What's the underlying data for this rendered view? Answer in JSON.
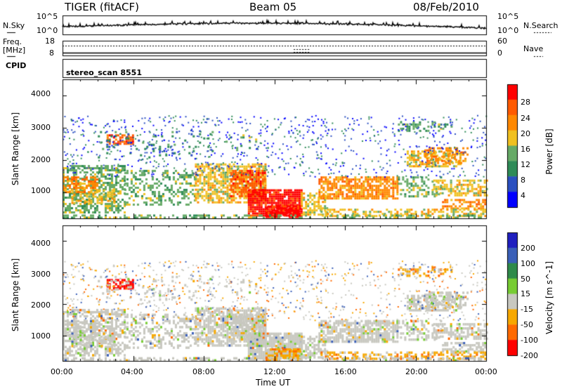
{
  "header": {
    "radar": "TIGER (fitACF)",
    "beam": "Beam 05",
    "date": "08/Feb/2010"
  },
  "left_labels": {
    "nsky": "N.Sky",
    "freq_line1": "Freq.",
    "freq_line2": "[MHz]",
    "cpid": "CPID"
  },
  "right_labels": {
    "nsearch": "N.Search",
    "nave": "Nave"
  },
  "cpid_name": "stereo_scan 8551",
  "noise_panel": {
    "left_ticks": [
      "10^5",
      "10^0"
    ],
    "right_ticks": [
      "10^5",
      "10^0"
    ]
  },
  "freq_panel": {
    "left_ticks": [
      "18",
      "8"
    ],
    "right_ticks": [
      "60",
      "0"
    ]
  },
  "colors": {
    "power": [
      "#0000ff",
      "#2a4fc0",
      "#2e8b57",
      "#66aa66",
      "#f0c020",
      "#ff8800",
      "#ff5a00",
      "#ff0000"
    ],
    "velocity": [
      "#1f1fbf",
      "#3a5fb8",
      "#2f8a4a",
      "#77cc33",
      "#c8c8c0",
      "#f7a800",
      "#ff6a00",
      "#ff0000"
    ]
  },
  "chart_data": [
    {
      "type": "heatmap",
      "ylabel": "Slant Range [km]",
      "xlabel": "",
      "x_range_hours": [
        0,
        24
      ],
      "ylim": [
        200,
        4500
      ],
      "yticks": [
        "1000",
        "2000",
        "3000",
        "4000"
      ],
      "colorbar_label": "Power [dB]",
      "colorbar_ticks": [
        "4",
        "8",
        "12",
        "16",
        "20",
        "24",
        "28"
      ],
      "colorbar_range": [
        0,
        32
      ]
    },
    {
      "type": "heatmap",
      "ylabel": "Slant Range [km]",
      "xlabel": "Time UT",
      "x_range_hours": [
        0,
        24
      ],
      "xticks": [
        "00:00",
        "04:00",
        "08:00",
        "12:00",
        "16:00",
        "20:00",
        "00:00"
      ],
      "ylim": [
        200,
        4500
      ],
      "yticks": [
        "1000",
        "2000",
        "3000",
        "4000"
      ],
      "colorbar_label": "Velocity [m s^-1]",
      "colorbar_ticks": [
        "200",
        "100",
        "50",
        "15",
        "-15",
        "-50",
        "-100",
        "-200"
      ]
    }
  ]
}
